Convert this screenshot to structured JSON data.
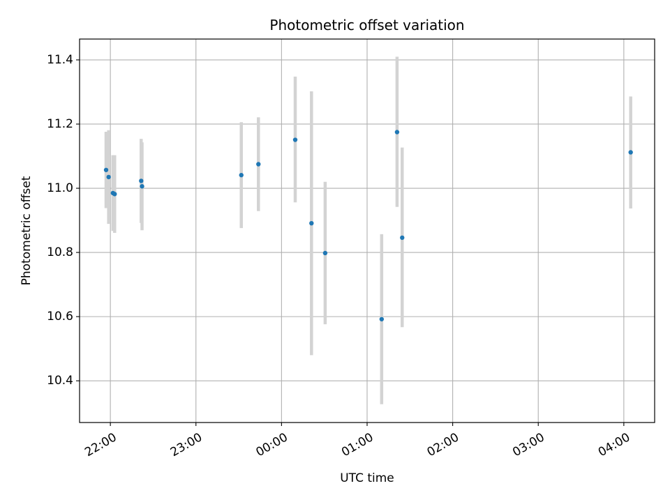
{
  "chart_data": {
    "type": "scatter",
    "title": "Photometric offset variation",
    "xlabel": "UTC time",
    "ylabel": "Photometric offset",
    "x_unit": "hours past 00:00 UTC",
    "xlim": [
      -2.36,
      4.36
    ],
    "ylim": [
      10.27,
      11.465
    ],
    "xticks": [
      {
        "value": -2,
        "label": "22:00"
      },
      {
        "value": -1,
        "label": "23:00"
      },
      {
        "value": 0,
        "label": "00:00"
      },
      {
        "value": 1,
        "label": "01:00"
      },
      {
        "value": 2,
        "label": "02:00"
      },
      {
        "value": 3,
        "label": "03:00"
      },
      {
        "value": 4,
        "label": "04:00"
      }
    ],
    "yticks": [
      {
        "value": 10.4,
        "label": "10.4"
      },
      {
        "value": 10.6,
        "label": "10.6"
      },
      {
        "value": 10.8,
        "label": "10.8"
      },
      {
        "value": 11.0,
        "label": "11.0"
      },
      {
        "value": 11.2,
        "label": "11.2"
      },
      {
        "value": 11.4,
        "label": "11.4"
      }
    ],
    "grid": true,
    "points": [
      {
        "x": -2.05,
        "y": 11.057,
        "ylow": 10.938,
        "yhigh": 11.176
      },
      {
        "x": -2.02,
        "y": 11.035,
        "ylow": 10.889,
        "yhigh": 11.181
      },
      {
        "x": -1.97,
        "y": 10.985,
        "ylow": 10.867,
        "yhigh": 11.103
      },
      {
        "x": -1.95,
        "y": 10.982,
        "ylow": 10.861,
        "yhigh": 11.103
      },
      {
        "x": -1.64,
        "y": 11.023,
        "ylow": 10.892,
        "yhigh": 11.154
      },
      {
        "x": -1.63,
        "y": 11.006,
        "ylow": 10.869,
        "yhigh": 11.143
      },
      {
        "x": -0.47,
        "y": 11.041,
        "ylow": 10.876,
        "yhigh": 11.206
      },
      {
        "x": -0.27,
        "y": 11.075,
        "ylow": 10.929,
        "yhigh": 11.221
      },
      {
        "x": 0.16,
        "y": 11.151,
        "ylow": 10.956,
        "yhigh": 11.348
      },
      {
        "x": 0.35,
        "y": 10.891,
        "ylow": 10.48,
        "yhigh": 11.302
      },
      {
        "x": 0.51,
        "y": 10.798,
        "ylow": 10.576,
        "yhigh": 11.02
      },
      {
        "x": 1.17,
        "y": 10.592,
        "ylow": 10.327,
        "yhigh": 10.857
      },
      {
        "x": 1.35,
        "y": 11.175,
        "ylow": 10.942,
        "yhigh": 11.41
      },
      {
        "x": 1.41,
        "y": 10.846,
        "ylow": 10.567,
        "yhigh": 11.127
      },
      {
        "x": 4.08,
        "y": 11.112,
        "ylow": 10.937,
        "yhigh": 11.286
      }
    ],
    "colors": {
      "point": "#1f77b4",
      "errorbar": "#d3d3d3",
      "grid": "#b0b0b0",
      "axis": "#000000"
    }
  }
}
